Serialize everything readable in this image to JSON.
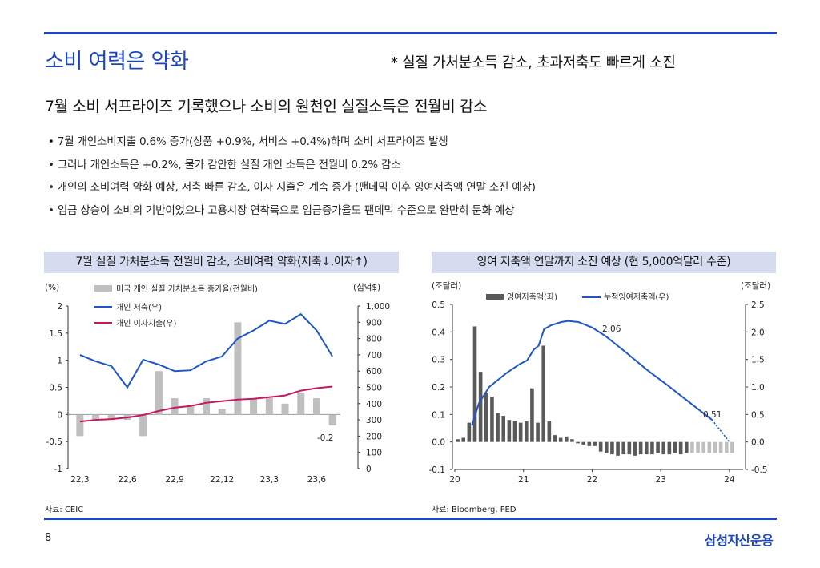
{
  "header": {
    "title": "소비 여력은 약화",
    "subtitle": "* 실질 가처분소득 감소, 초과저축도 빠르게 소진",
    "headline": "7월 소비 서프라이즈 기록했으나 소비의 원천인 실질소득은 전월비 감소"
  },
  "bullets": [
    "• 7월 개인소비지출 0.6% 증가(상품 +0.9%, 서비스 +0.4%)하며 소비 서프라이즈 발생",
    "• 그러나 개인소득은 +0.2%, 물가 감안한 실질 개인 소득은 전월비 0.2% 감소",
    "• 개인의 소비여력 약화 예상, 저축 빠른 감소, 이자 지출은 계속 증가 (팬데믹 이후 잉여저축액 연말 소진 예상)",
    "• 임금 상승이 소비의 기반이었으나 고용시장 연착륙으로 임금증가율도 팬데믹 수준으로 완만히 둔화 예상"
  ],
  "panels": {
    "left_title": "7월 실질 가처분소득 전월비 감소, 소비여력 약화(저축↓,이자↑)",
    "right_title": "잉여 저축액 연말까지 소진 예상 (현 5,000억달러 수준)",
    "left_source": "자료: CEIC",
    "right_source": "자료: Bloomberg, FED"
  },
  "footer": {
    "page_number": "8",
    "brand": "삼성자산운용"
  },
  "colors": {
    "accent": "#1f47c4",
    "panel_bg": "#d6dcef",
    "bar_gray": "#bfbfbf",
    "bar_dark": "#595959",
    "line_blue": "#1e56c8",
    "line_red": "#c8175f"
  },
  "chart_data": [
    {
      "type": "bar+line",
      "title": "7월 실질 가처분소득 전월비 감소, 소비여력 약화(저축↓,이자↑)",
      "categories": [
        "22,3",
        "22,4",
        "22,5",
        "22,6",
        "22,7",
        "22,8",
        "22,9",
        "22,10",
        "22,11",
        "22,12",
        "23,1",
        "23,2",
        "23,3",
        "23,4",
        "23,5",
        "23,6",
        "23,7"
      ],
      "tick_labels": [
        "22,3",
        "22,6",
        "22,9",
        "22,12",
        "23,3",
        "23,6"
      ],
      "y_left": {
        "unit_label": "(%)",
        "min": -1,
        "max": 2,
        "ticks": [
          "-1",
          "-0.5",
          "0",
          "0.5",
          "1",
          "1.5",
          "2"
        ]
      },
      "y_right": {
        "unit_label": "(십억$)",
        "min": 0,
        "max": 1000,
        "ticks": [
          "0",
          "100",
          "200",
          "300",
          "400",
          "500",
          "600",
          "700",
          "800",
          "900",
          "1,000"
        ]
      },
      "series": [
        {
          "name": "미국 개인 실질 가처분소득 증가율(전월비)",
          "kind": "bar",
          "axis": "left",
          "values": [
            -0.4,
            -0.1,
            -0.1,
            -0.1,
            -0.4,
            0.8,
            0.3,
            0.15,
            0.3,
            0.1,
            1.7,
            0.3,
            0.3,
            0.2,
            0.4,
            0.3,
            -0.2
          ]
        },
        {
          "name": "개인 저축(우)",
          "kind": "line",
          "axis": "right",
          "values": [
            700,
            660,
            630,
            500,
            670,
            640,
            600,
            605,
            660,
            690,
            800,
            850,
            910,
            890,
            950,
            850,
            690
          ]
        },
        {
          "name": "개인 이자지출(우)",
          "kind": "line",
          "axis": "right",
          "values": [
            290,
            300,
            305,
            315,
            330,
            355,
            375,
            385,
            405,
            415,
            425,
            430,
            440,
            450,
            480,
            495,
            505
          ]
        }
      ],
      "annotations": [
        {
          "label": "-0.2",
          "category": "23,7"
        }
      ]
    },
    {
      "type": "bar+line",
      "title": "잉여 저축액 연말까지 소진 예상 (현 5,000억달러 수준)",
      "x_range": [
        2020.0,
        2024.2
      ],
      "x_ticks": [
        "20",
        "21",
        "22",
        "23",
        "24"
      ],
      "y_left": {
        "unit_label": "(조달러)",
        "min": -0.1,
        "max": 0.5,
        "ticks": [
          "-0.1",
          "0.0",
          "0.1",
          "0.2",
          "0.3",
          "0.4",
          "0.5"
        ]
      },
      "y_right": {
        "unit_label": "(조달러)",
        "min": -0.5,
        "max": 2.5,
        "ticks": [
          "-0.5",
          "0.0",
          "0.5",
          "1.0",
          "1.5",
          "2.0",
          "2.5"
        ]
      },
      "series": [
        {
          "name": "잉여저축액(좌)",
          "kind": "bar",
          "axis": "left",
          "values": [
            0.01,
            0.015,
            0.07,
            0.42,
            0.255,
            0.18,
            0.165,
            0.105,
            0.095,
            0.08,
            0.075,
            0.07,
            0.075,
            0.195,
            0.07,
            0.35,
            0.075,
            0.025,
            0.015,
            0.02,
            0.01,
            -0.005,
            -0.01,
            -0.015,
            -0.015,
            -0.035,
            -0.04,
            -0.045,
            -0.05,
            -0.045,
            -0.045,
            -0.05,
            -0.045,
            -0.045,
            -0.045,
            -0.04,
            -0.045,
            -0.045,
            -0.04,
            -0.045,
            -0.04
          ]
        },
        {
          "name": "누적잉여저축액(우)",
          "kind": "line",
          "axis": "right",
          "points": [
            [
              2020.25,
              0.3
            ],
            [
              2020.35,
              0.7
            ],
            [
              2020.5,
              1.0
            ],
            [
              2020.75,
              1.25
            ],
            [
              2020.95,
              1.42
            ],
            [
              2021.05,
              1.48
            ],
            [
              2021.15,
              1.68
            ],
            [
              2021.22,
              1.75
            ],
            [
              2021.3,
              2.05
            ],
            [
              2021.4,
              2.12
            ],
            [
              2021.55,
              2.18
            ],
            [
              2021.65,
              2.2
            ],
            [
              2021.8,
              2.18
            ],
            [
              2022.0,
              2.08
            ],
            [
              2022.2,
              1.92
            ],
            [
              2022.5,
              1.62
            ],
            [
              2022.8,
              1.31
            ],
            [
              2023.1,
              1.03
            ],
            [
              2023.5,
              0.64
            ],
            [
              2023.75,
              0.4
            ]
          ]
        },
        {
          "name": "forecast",
          "kind": "dotted",
          "axis": "right",
          "points": [
            [
              2023.75,
              0.4
            ],
            [
              2024.0,
              0.0
            ]
          ]
        }
      ],
      "annotations": [
        {
          "label": "2.06"
        },
        {
          "label": "0.51"
        }
      ]
    }
  ]
}
